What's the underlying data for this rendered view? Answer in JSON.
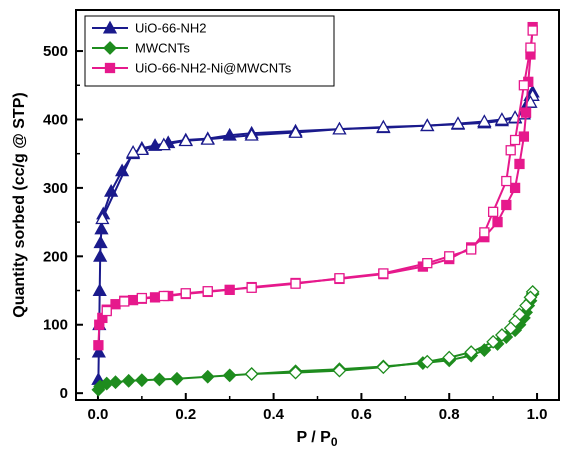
{
  "chart_data": {
    "type": "scatter",
    "xlabel": "P / P",
    "xlabel_subscript": "0",
    "ylabel": "Quantity sorbed (cc/g @ STP)",
    "xlim": [
      -0.05,
      1.05
    ],
    "ylim": [
      -10,
      560
    ],
    "x_ticks": [
      "0.0",
      "0.2",
      "0.4",
      "0.6",
      "0.8",
      "1.0"
    ],
    "y_ticks": [
      "0",
      "100",
      "200",
      "300",
      "400",
      "500"
    ],
    "legend_position": "top-left",
    "grid": false,
    "series": [
      {
        "name": "UiO-66-NH2",
        "color": "#1a1a8c",
        "marker": "triangle",
        "adsorption": [
          [
            0.001,
            20
          ],
          [
            0.002,
            60
          ],
          [
            0.003,
            100
          ],
          [
            0.004,
            150
          ],
          [
            0.005,
            200
          ],
          [
            0.006,
            220
          ],
          [
            0.008,
            240
          ],
          [
            0.012,
            262
          ],
          [
            0.03,
            295
          ],
          [
            0.055,
            325
          ],
          [
            0.08,
            350
          ],
          [
            0.1,
            358
          ],
          [
            0.13,
            362
          ],
          [
            0.16,
            366
          ],
          [
            0.2,
            370
          ],
          [
            0.25,
            372
          ],
          [
            0.3,
            377
          ],
          [
            0.35,
            380
          ],
          [
            0.45,
            383
          ],
          [
            0.55,
            386
          ],
          [
            0.65,
            388
          ],
          [
            0.75,
            391
          ],
          [
            0.82,
            393
          ],
          [
            0.88,
            395
          ],
          [
            0.92,
            398
          ],
          [
            0.95,
            402
          ],
          [
            0.97,
            410
          ],
          [
            0.98,
            425
          ],
          [
            0.985,
            435
          ],
          [
            0.99,
            440
          ]
        ],
        "desorption": [
          [
            0.99,
            435
          ],
          [
            0.985,
            425
          ],
          [
            0.97,
            408
          ],
          [
            0.95,
            403
          ],
          [
            0.92,
            400
          ],
          [
            0.88,
            397
          ],
          [
            0.82,
            394
          ],
          [
            0.75,
            391
          ],
          [
            0.65,
            389
          ],
          [
            0.55,
            386
          ],
          [
            0.45,
            381
          ],
          [
            0.35,
            377
          ],
          [
            0.25,
            371
          ],
          [
            0.2,
            369
          ],
          [
            0.15,
            363
          ],
          [
            0.1,
            356
          ],
          [
            0.08,
            352
          ],
          [
            0.01,
            255
          ]
        ]
      },
      {
        "name": "MWCNTs",
        "color": "#1e8c1e",
        "marker": "diamond",
        "adsorption": [
          [
            0.001,
            5
          ],
          [
            0.005,
            10
          ],
          [
            0.02,
            14
          ],
          [
            0.04,
            16
          ],
          [
            0.07,
            18
          ],
          [
            0.1,
            19
          ],
          [
            0.14,
            20
          ],
          [
            0.18,
            21
          ],
          [
            0.25,
            24
          ],
          [
            0.3,
            26
          ],
          [
            0.35,
            28
          ],
          [
            0.45,
            32
          ],
          [
            0.55,
            35
          ],
          [
            0.65,
            39
          ],
          [
            0.74,
            44
          ],
          [
            0.8,
            48
          ],
          [
            0.85,
            55
          ],
          [
            0.88,
            63
          ],
          [
            0.91,
            72
          ],
          [
            0.93,
            82
          ],
          [
            0.95,
            92
          ],
          [
            0.96,
            100
          ],
          [
            0.97,
            110
          ],
          [
            0.975,
            118
          ],
          [
            0.98,
            128
          ],
          [
            0.985,
            135
          ],
          [
            0.99,
            145
          ]
        ],
        "desorption": [
          [
            0.99,
            148
          ],
          [
            0.985,
            140
          ],
          [
            0.975,
            128
          ],
          [
            0.96,
            115
          ],
          [
            0.95,
            105
          ],
          [
            0.94,
            95
          ],
          [
            0.92,
            85
          ],
          [
            0.9,
            75
          ],
          [
            0.85,
            60
          ],
          [
            0.8,
            52
          ],
          [
            0.75,
            46
          ],
          [
            0.65,
            38
          ],
          [
            0.55,
            33
          ],
          [
            0.45,
            30
          ],
          [
            0.35,
            28
          ]
        ]
      },
      {
        "name": "UiO-66-NH2-Ni@MWCNTs",
        "color": "#e6198c",
        "marker": "square",
        "adsorption": [
          [
            0.001,
            70
          ],
          [
            0.003,
            100
          ],
          [
            0.01,
            110
          ],
          [
            0.02,
            122
          ],
          [
            0.04,
            130
          ],
          [
            0.06,
            135
          ],
          [
            0.08,
            136
          ],
          [
            0.1,
            138
          ],
          [
            0.13,
            140
          ],
          [
            0.16,
            142
          ],
          [
            0.2,
            145
          ],
          [
            0.25,
            148
          ],
          [
            0.3,
            151
          ],
          [
            0.35,
            155
          ],
          [
            0.45,
            161
          ],
          [
            0.55,
            167
          ],
          [
            0.65,
            174
          ],
          [
            0.74,
            185
          ],
          [
            0.8,
            196
          ],
          [
            0.85,
            213
          ],
          [
            0.88,
            228
          ],
          [
            0.91,
            250
          ],
          [
            0.93,
            275
          ],
          [
            0.95,
            300
          ],
          [
            0.96,
            335
          ],
          [
            0.97,
            375
          ],
          [
            0.975,
            410
          ],
          [
            0.98,
            455
          ],
          [
            0.985,
            495
          ],
          [
            0.99,
            535
          ]
        ],
        "desorption": [
          [
            0.99,
            530
          ],
          [
            0.985,
            505
          ],
          [
            0.97,
            450
          ],
          [
            0.95,
            370
          ],
          [
            0.94,
            355
          ],
          [
            0.93,
            310
          ],
          [
            0.9,
            265
          ],
          [
            0.88,
            235
          ],
          [
            0.85,
            210
          ],
          [
            0.8,
            200
          ],
          [
            0.75,
            190
          ],
          [
            0.65,
            175
          ],
          [
            0.55,
            168
          ],
          [
            0.45,
            160
          ],
          [
            0.35,
            154
          ],
          [
            0.25,
            149
          ],
          [
            0.2,
            146
          ],
          [
            0.15,
            142
          ],
          [
            0.1,
            139
          ],
          [
            0.06,
            134
          ],
          [
            0.02,
            120
          ]
        ]
      }
    ]
  }
}
